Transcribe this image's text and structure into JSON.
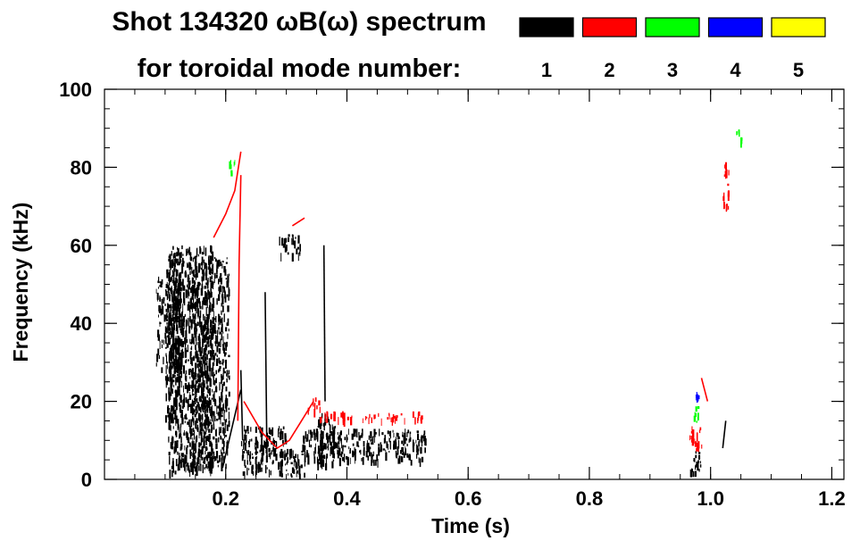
{
  "chart_data": {
    "type": "heatmap",
    "title_line1": "Shot 134320 ωB(ω) spectrum",
    "title_line2": "for toroidal mode number:",
    "xlabel": "Time (s)",
    "ylabel": "Frequency (kHz)",
    "xlim": [
      0.0,
      1.22
    ],
    "ylim": [
      0,
      100
    ],
    "x_ticks": [
      {
        "value": 0.2,
        "label": "0.2"
      },
      {
        "value": 0.4,
        "label": "0.4"
      },
      {
        "value": 0.6,
        "label": "0.6"
      },
      {
        "value": 0.8,
        "label": "0.8"
      },
      {
        "value": 1.0,
        "label": "1.0"
      },
      {
        "value": 1.2,
        "label": "1.2"
      }
    ],
    "x_minor_step": 0.05,
    "y_ticks": [
      {
        "value": 0,
        "label": "0"
      },
      {
        "value": 20,
        "label": "20"
      },
      {
        "value": 40,
        "label": "40"
      },
      {
        "value": 60,
        "label": "60"
      },
      {
        "value": 80,
        "label": "80"
      },
      {
        "value": 100,
        "label": "100"
      }
    ],
    "y_minor_step": 5,
    "legend": [
      {
        "mode": "1",
        "color": "#000000"
      },
      {
        "mode": "2",
        "color": "#ff0000"
      },
      {
        "mode": "3",
        "color": "#00ff00"
      },
      {
        "mode": "4",
        "color": "#0000ff"
      },
      {
        "mode": "5",
        "color": "#ffff00"
      }
    ],
    "series": [
      {
        "name": "n=1",
        "color": "#000000",
        "regions": [
          {
            "t0": 0.085,
            "t1": 0.13,
            "f0": 28,
            "f1": 52
          },
          {
            "t0": 0.1,
            "t1": 0.125,
            "f0": 15,
            "f1": 58
          },
          {
            "t0": 0.105,
            "t1": 0.18,
            "f0": 2,
            "f1": 60
          },
          {
            "t0": 0.14,
            "t1": 0.205,
            "f0": 3,
            "f1": 57
          },
          {
            "t0": 0.225,
            "t1": 0.3,
            "f0": 2,
            "f1": 14
          },
          {
            "t0": 0.285,
            "t1": 0.33,
            "f0": 1,
            "f1": 8
          },
          {
            "t0": 0.325,
            "t1": 0.53,
            "f0": 5,
            "f1": 13
          },
          {
            "t0": 0.35,
            "t1": 0.38,
            "f0": 4,
            "f1": 17
          },
          {
            "t0": 0.288,
            "t1": 0.322,
            "f0": 58,
            "f1": 63
          },
          {
            "t0": 0.965,
            "t1": 0.985,
            "f0": 2,
            "f1": 8
          }
        ],
        "lines": [
          [
            [
              0.225,
              28
            ],
            [
              0.228,
              10
            ]
          ],
          [
            [
              0.195,
              3
            ],
            [
              0.225,
              23
            ]
          ],
          [
            [
              0.265,
              48
            ],
            [
              0.268,
              6
            ]
          ],
          [
            [
              0.362,
              60
            ],
            [
              0.364,
              20
            ]
          ],
          [
            [
              1.025,
              15
            ],
            [
              1.02,
              8
            ]
          ]
        ]
      },
      {
        "name": "n=2",
        "color": "#ff0000",
        "regions": [
          {
            "t0": 0.335,
            "t1": 0.355,
            "f0": 18,
            "f1": 21
          },
          {
            "t0": 0.355,
            "t1": 0.53,
            "f0": 15.5,
            "f1": 17.5
          },
          {
            "t0": 0.965,
            "t1": 0.985,
            "f0": 8,
            "f1": 14
          },
          {
            "t0": 1.02,
            "t1": 1.03,
            "f0": 70,
            "f1": 83
          }
        ],
        "lines": [
          [
            [
              0.18,
              62
            ],
            [
              0.2,
              68
            ],
            [
              0.215,
              74
            ],
            [
              0.225,
              84
            ]
          ],
          [
            [
              0.225,
              78
            ],
            [
              0.222,
              55
            ],
            [
              0.22,
              15
            ]
          ],
          [
            [
              0.23,
              20
            ],
            [
              0.26,
              12
            ],
            [
              0.285,
              8
            ],
            [
              0.305,
              10
            ],
            [
              0.325,
              15
            ],
            [
              0.345,
              20
            ]
          ],
          [
            [
              0.31,
              65
            ],
            [
              0.33,
              67
            ]
          ],
          [
            [
              0.995,
              20
            ],
            [
              0.985,
              26
            ]
          ]
        ]
      },
      {
        "name": "n=3",
        "color": "#00ff00",
        "regions": [
          {
            "t0": 0.205,
            "t1": 0.215,
            "f0": 78,
            "f1": 82
          },
          {
            "t0": 0.97,
            "t1": 0.98,
            "f0": 15,
            "f1": 19
          },
          {
            "t0": 1.04,
            "t1": 1.05,
            "f0": 86,
            "f1": 90
          }
        ],
        "lines": []
      },
      {
        "name": "n=4",
        "color": "#0000ff",
        "regions": [
          {
            "t0": 0.975,
            "t1": 0.98,
            "f0": 21,
            "f1": 23
          }
        ],
        "lines": []
      },
      {
        "name": "n=5",
        "color": "#ffff00",
        "regions": [],
        "lines": []
      }
    ]
  }
}
